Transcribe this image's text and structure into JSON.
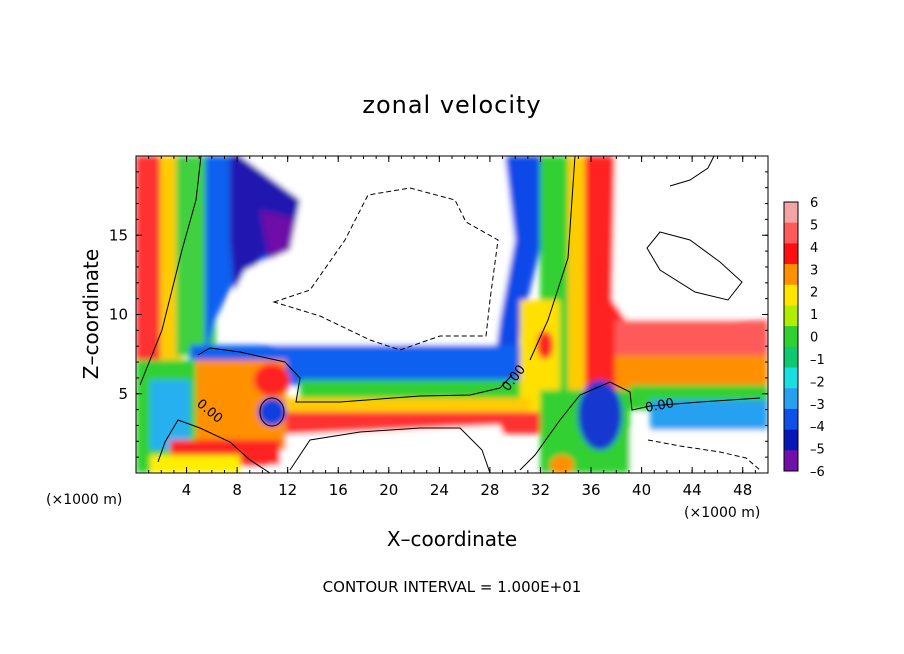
{
  "chart_data": {
    "type": "heatmap",
    "title": "zonal velocity",
    "xlabel": "X–coordinate",
    "ylabel": "Z–coordinate",
    "x_unit": "(×1000 m)",
    "y_unit": "(×1000 m)",
    "xlim": [
      0,
      50
    ],
    "ylim": [
      0,
      20
    ],
    "x_ticks": [
      "4",
      "8",
      "12",
      "16",
      "20",
      "24",
      "28",
      "32",
      "36",
      "40",
      "44",
      "48"
    ],
    "y_ticks": [
      "5",
      "10",
      "15"
    ],
    "colorbar": {
      "min": -6,
      "max": 6,
      "tick_labels": [
        "6",
        "5",
        "4",
        "3",
        "2",
        "1",
        "0",
        "–1",
        "–2",
        "–3",
        "–4",
        "–5",
        "–6"
      ],
      "colors": [
        "#f4a4a4",
        "#ff5a5a",
        "#ff1010",
        "#ff9000",
        "#ffe600",
        "#b0ee00",
        "#30d030",
        "#10c870",
        "#18e0e0",
        "#28a0f0",
        "#1050e8",
        "#0818b8",
        "#7010a8"
      ]
    },
    "contour_labels": [
      "0.00",
      "0.00",
      "0.00"
    ],
    "footer": "CONTOUR INTERVAL = 1.000E+01"
  }
}
